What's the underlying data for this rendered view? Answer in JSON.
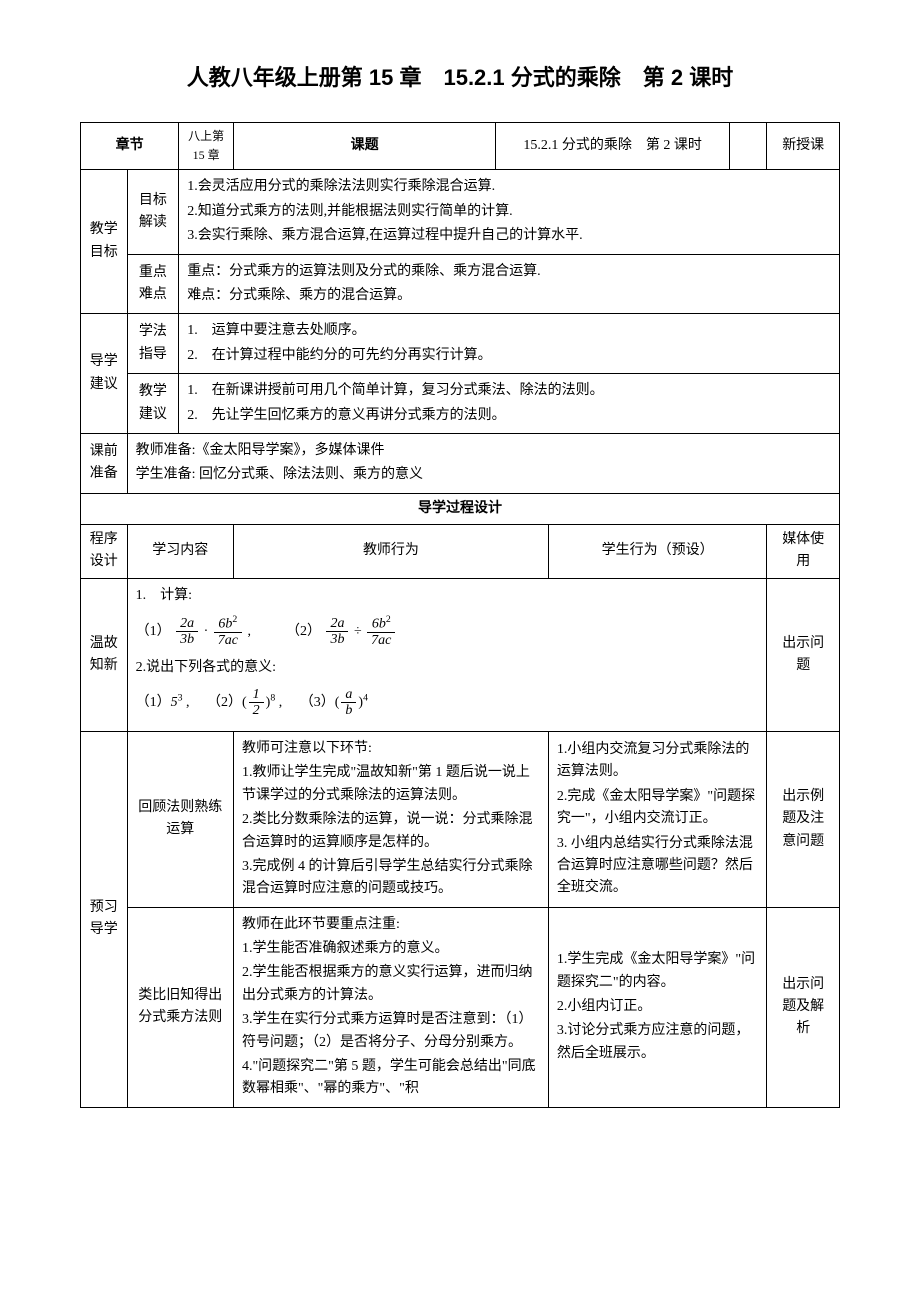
{
  "title": "人教八年级上册第 15 章　15.2.1 分式的乘除　第 2 课时",
  "row1": {
    "chapter_label": "章节",
    "chapter_value": "八上第 15 章",
    "topic_label": "课题",
    "topic_value": "15.2.1 分式的乘除　第 2 课时",
    "type_value": "新授课"
  },
  "teaching_goal": {
    "label": "教学目标",
    "interpret_label": "目标解读",
    "interpret_1": "1.会灵活应用分式的乘除法法则实行乘除混合运算.",
    "interpret_2": "2.知道分式乘方的法则,并能根据法则实行简单的计算.",
    "interpret_3": "3.会实行乘除、乘方混合运算,在运算过程中提升自己的计算水平.",
    "key_label": "重点难点",
    "key_1": "重点：分式乘方的运算法则及分式的乘除、乘方混合运算.",
    "key_2": "难点：分式乘除、乘方的混合运算。"
  },
  "guide": {
    "label": "导学建议",
    "method_label": "学法指导",
    "method_1": "1.　运算中要注意去处顺序。",
    "method_2": "2.　在计算过程中能约分的可先约分再实行计算。",
    "teach_label": "教学建议",
    "teach_1": "1.　在新课讲授前可用几个简单计算，复习分式乘法、除法的法则。",
    "teach_2": "2.　先让学生回忆乘方的意义再讲分式乘方的法则。"
  },
  "prep": {
    "label": "课前准备",
    "line1": "教师准备:《金太阳导学案》，多媒体课件",
    "line2": "学生准备:  回忆分式乘、除法法则、乘方的意义"
  },
  "process_header": "导学过程设计",
  "columns": {
    "c1": "程序设计",
    "c2": "学习内容",
    "c3": "教师行为",
    "c4": "学生行为（预设）",
    "c5": "媒体使用"
  },
  "review": {
    "label": "温故知新",
    "line1": "1.　计算:",
    "line2": "2.说出下列各式的意义:",
    "media": "出示问题"
  },
  "preview": {
    "label": "预习导学",
    "sub1_label": "回顾法则熟练运算",
    "sub1_teacher_0": "教师可注意以下环节:",
    "sub1_teacher_1": "1.教师让学生完成\"温故知新\"第 1 题后说一说上节课学过的分式乘除法的运算法则。",
    "sub1_teacher_2": "2.类比分数乘除法的运算，说一说：分式乘除混合运算时的运算顺序是怎样的。",
    "sub1_teacher_3": "3.完成例 4 的计算后引导学生总结实行分式乘除混合运算时应注意的问题或技巧。",
    "sub1_student_1": "1.小组内交流复习分式乘除法的运算法则。",
    "sub1_student_2": "2.完成《金太阳导学案》\"问题探究一\"，小组内交流订正。",
    "sub1_student_3": "3. 小组内总结实行分式乘除法混合运算时应注意哪些问题？然后全班交流。",
    "sub1_media": "出示例题及注意问题",
    "sub2_label": "类比旧知得出分式乘方法则",
    "sub2_teacher_0": "教师在此环节要重点注重:",
    "sub2_teacher_1": "1.学生能否准确叙述乘方的意义。",
    "sub2_teacher_2": "2.学生能否根据乘方的意义实行运算，进而归纳出分式乘方的计算法。",
    "sub2_teacher_3": "3.学生在实行分式乘方运算时是否注意到：（1）符号问题；（2）是否将分子、分母分别乘方。",
    "sub2_teacher_4": "4.\"问题探究二\"第 5 题，学生可能会总结出\"同底数幂相乘\"、\"幂的乘方\"、\"积",
    "sub2_student_1": "1.学生完成《金太阳导学案》\"问题探究二\"的内容。",
    "sub2_student_2": "2.小组内订正。",
    "sub2_student_3": "3.讨论分式乘方应注意的问题，然后全班展示。",
    "sub2_media": "出示问题及解析"
  }
}
